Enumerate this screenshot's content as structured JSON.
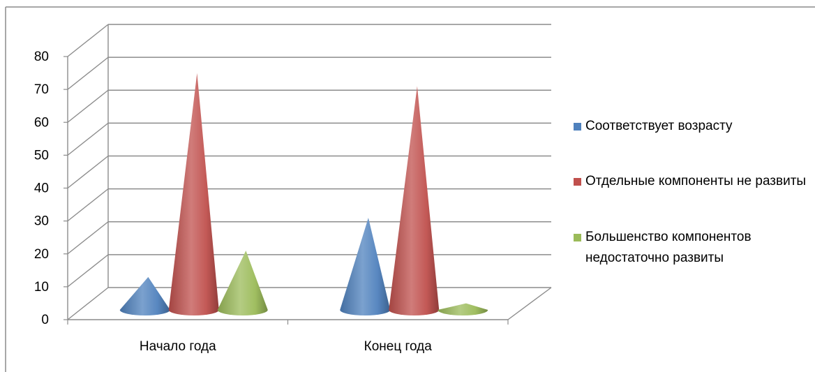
{
  "chart_data": {
    "type": "bar",
    "shape": "cone",
    "title": "",
    "xlabel": "",
    "ylabel": "",
    "categories": [
      "Начало года",
      "Конец года"
    ],
    "series": [
      {
        "name": "Соответствует возрасту",
        "values": [
          10,
          28
        ],
        "color": "#4F81BD"
      },
      {
        "name": "Отдельные компоненты не развиты",
        "values": [
          72,
          68
        ],
        "color": "#C0504D"
      },
      {
        "name": "Большенство компонентов недостаточно развиты",
        "values": [
          18,
          2
        ],
        "color": "#9BBB59"
      }
    ],
    "ylim": [
      0,
      80
    ],
    "yticks": [
      "0",
      "10",
      "20",
      "30",
      "40",
      "50",
      "60",
      "70",
      "80"
    ],
    "grid": true,
    "legend_position": "right"
  }
}
